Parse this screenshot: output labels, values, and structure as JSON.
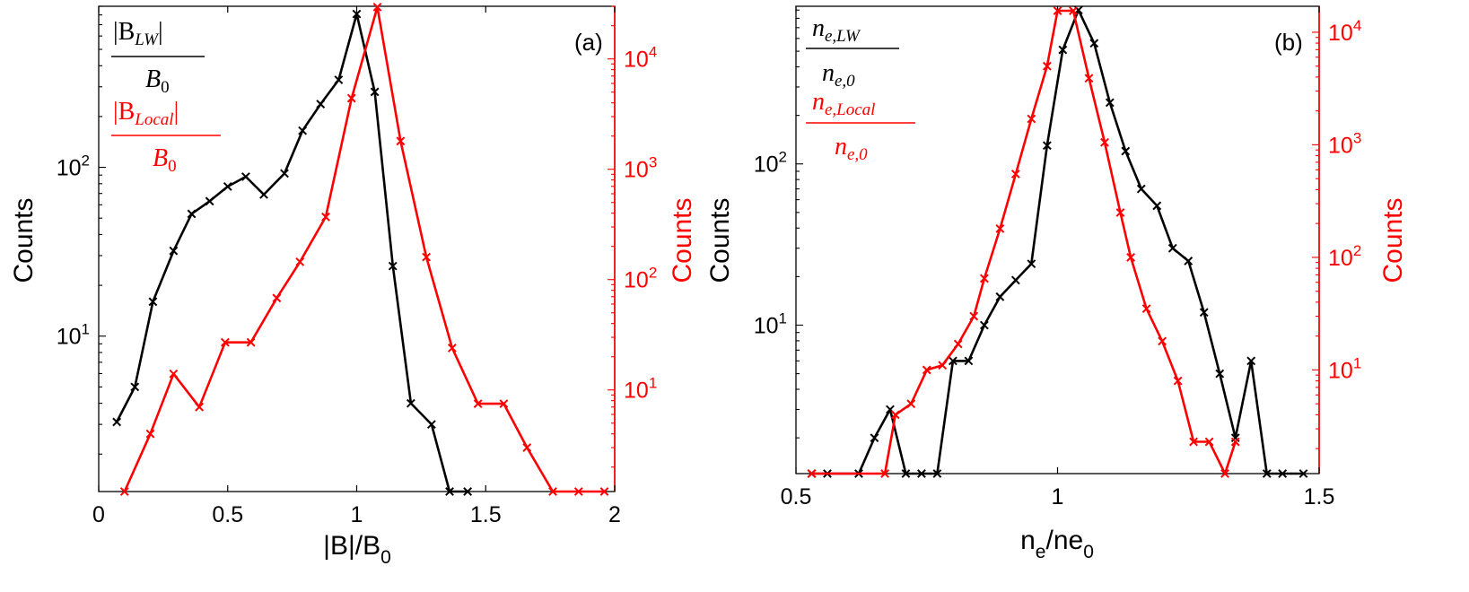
{
  "chart_data": [
    {
      "type": "line",
      "panel_label": "(a)",
      "xlabel": "|B|/B",
      "xlabel_sub": "0",
      "xlim": [
        0,
        2
      ],
      "x_ticks": [
        0,
        0.5,
        1,
        1.5,
        2
      ],
      "x_tick_labels": [
        "0",
        "0.5",
        "1",
        "1.5",
        "2"
      ],
      "left_axis": {
        "label": "Counts",
        "scale": "log",
        "range": [
          1.2,
          900
        ],
        "ticks": [
          10,
          100
        ],
        "tick_base": "10",
        "tick_exponents": [
          "1",
          "2"
        ],
        "color": "#000000"
      },
      "right_axis": {
        "label": "Counts",
        "scale": "log",
        "range": [
          1.2,
          30000
        ],
        "ticks": [
          10,
          100,
          1000,
          10000
        ],
        "tick_base": "10",
        "tick_exponents": [
          "1",
          "2",
          "3",
          "4"
        ],
        "color": "#ff0000"
      },
      "legend": [
        {
          "numerator": "|B",
          "num_sub": "LW",
          "num_close": "|",
          "denominator": "B",
          "den_sub": "0",
          "color": "#000000"
        },
        {
          "numerator": "|B",
          "num_sub": "Local",
          "num_close": "|",
          "denominator": "B",
          "den_sub": "0",
          "color": "#ff0000"
        }
      ],
      "series": [
        {
          "axis": "left",
          "color": "#000000",
          "x": [
            0.07,
            0.14,
            0.21,
            0.29,
            0.36,
            0.43,
            0.5,
            0.57,
            0.64,
            0.72,
            0.79,
            0.86,
            0.93,
            1.0,
            1.07,
            1.14,
            1.21,
            1.29,
            1.36,
            1.43
          ],
          "y": [
            3.1,
            5,
            16,
            32,
            53,
            63,
            77,
            88,
            69,
            92,
            165,
            237,
            330,
            810,
            280,
            26,
            4,
            3,
            1.2,
            1.2
          ]
        },
        {
          "axis": "right",
          "color": "#ff0000",
          "x": [
            0.1,
            0.2,
            0.29,
            0.39,
            0.49,
            0.59,
            0.69,
            0.78,
            0.88,
            0.98,
            1.08,
            1.17,
            1.27,
            1.37,
            1.47,
            1.57,
            1.66,
            1.76,
            1.86,
            1.96
          ],
          "y": [
            1.2,
            4,
            14,
            7,
            27,
            27,
            68,
            145,
            370,
            4400,
            29500,
            1800,
            160,
            24,
            7.5,
            7.5,
            3,
            1.2,
            1.2,
            1.2
          ]
        }
      ]
    },
    {
      "type": "line",
      "panel_label": "(b)",
      "xlabel": "n",
      "xlabel_sub1": "e",
      "xlabel_mid": "/ne",
      "xlabel_sub2": "0",
      "xlim": [
        0.5,
        1.5
      ],
      "x_ticks": [
        0.5,
        1,
        1.5
      ],
      "x_tick_labels": [
        "0.5",
        "1",
        "1.5"
      ],
      "left_axis": {
        "label": "Counts",
        "scale": "log",
        "range": [
          1.2,
          950
        ],
        "ticks": [
          10,
          100
        ],
        "tick_base": "10",
        "tick_exponents": [
          "1",
          "2"
        ],
        "color": "#000000"
      },
      "right_axis": {
        "label": "Counts",
        "scale": "log",
        "range": [
          1.2,
          17000
        ],
        "ticks": [
          10,
          100,
          1000,
          10000
        ],
        "tick_base": "10",
        "tick_exponents": [
          "1",
          "2",
          "3",
          "4"
        ],
        "color": "#ff0000"
      },
      "legend": [
        {
          "num_base": "n",
          "num_sub": "e,LW",
          "den_base": "n",
          "den_sub": "e,0",
          "color": "#000000"
        },
        {
          "num_base": "n",
          "num_sub": "e,Local",
          "den_base": "n",
          "den_sub": "e,0",
          "color": "#ff0000"
        }
      ],
      "series": [
        {
          "axis": "left",
          "color": "#000000",
          "x": [
            0.53,
            0.56,
            0.62,
            0.65,
            0.68,
            0.71,
            0.74,
            0.77,
            0.8,
            0.83,
            0.86,
            0.89,
            0.92,
            0.95,
            0.98,
            1.01,
            1.04,
            1.07,
            1.1,
            1.13,
            1.16,
            1.19,
            1.22,
            1.25,
            1.28,
            1.31,
            1.34,
            1.37,
            1.4,
            1.43,
            1.47
          ],
          "y": [
            1.2,
            1.2,
            1.2,
            2,
            3,
            1.2,
            1.2,
            1.2,
            6,
            6,
            10,
            15,
            19,
            24,
            130,
            510,
            900,
            560,
            240,
            120,
            70,
            55,
            30,
            25,
            12,
            5,
            2,
            6,
            1.2,
            1.2,
            1.2
          ]
        },
        {
          "axis": "right",
          "color": "#ff0000",
          "x": [
            0.53,
            0.67,
            0.69,
            0.72,
            0.75,
            0.78,
            0.81,
            0.84,
            0.86,
            0.89,
            0.92,
            0.95,
            0.98,
            1.0,
            1.03,
            1.06,
            1.09,
            1.12,
            1.14,
            1.17,
            1.2,
            1.23,
            1.26,
            1.29,
            1.32,
            1.34
          ],
          "y": [
            1.2,
            1.2,
            4,
            5,
            10,
            11,
            17,
            30,
            65,
            180,
            550,
            1700,
            5000,
            15500,
            15500,
            3900,
            1050,
            250,
            100,
            35,
            18,
            8,
            2.3,
            2.3,
            1.2,
            2.3
          ]
        }
      ]
    }
  ]
}
